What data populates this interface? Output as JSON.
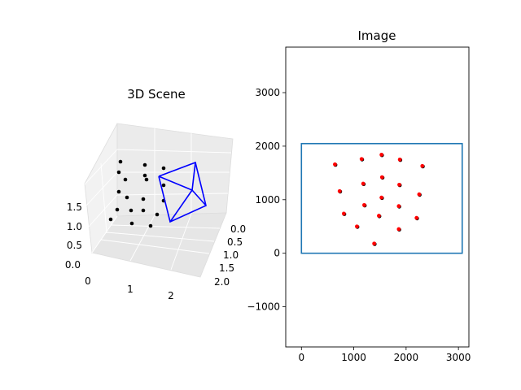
{
  "figure": {
    "background": "#ffffff"
  },
  "chart_data": [
    {
      "type": "scatter",
      "projection": "3d",
      "title": "3D Scene",
      "x_ticks": [
        "0",
        "1",
        "2"
      ],
      "y_ticks": [
        "0.0",
        "0.5",
        "1.0",
        "1.5",
        "2.0"
      ],
      "z_ticks": [
        "0.0",
        "0.5",
        "1.0",
        "1.5"
      ],
      "grid": true,
      "point_color": "#000000",
      "camera_color": "#0000ff",
      "points_note_units": "grid of world points on a plane, camera frustum drawn in blue"
    },
    {
      "type": "scatter",
      "title": "Image",
      "xlim": [
        -300,
        3200
      ],
      "ylim": [
        -1750,
        3850
      ],
      "x_ticks": [
        0,
        1000,
        2000,
        3000
      ],
      "y_ticks": [
        -1000,
        0,
        1000,
        2000,
        3000
      ],
      "x_tick_labels": [
        "0",
        "1000",
        "2000",
        "3000"
      ],
      "y_tick_labels": [
        "−1000",
        "0",
        "1000",
        "2000",
        "3000"
      ],
      "grid": false,
      "image_bounds": {
        "x": [
          0,
          3072
        ],
        "y": [
          0,
          2048
        ],
        "color": "#1f77b4"
      },
      "projected_color": "#000000",
      "detected_color": "#ff0000",
      "points": [
        [
          640,
          1660
        ],
        [
          1150,
          1760
        ],
        [
          1530,
          1840
        ],
        [
          1880,
          1750
        ],
        [
          2310,
          1630
        ],
        [
          1180,
          1300
        ],
        [
          1540,
          1420
        ],
        [
          1870,
          1280
        ],
        [
          730,
          1160
        ],
        [
          1530,
          1040
        ],
        [
          2250,
          1100
        ],
        [
          1200,
          900
        ],
        [
          1860,
          880
        ],
        [
          810,
          740
        ],
        [
          1480,
          700
        ],
        [
          2200,
          660
        ],
        [
          1060,
          500
        ],
        [
          1860,
          450
        ],
        [
          1390,
          180
        ]
      ]
    }
  ]
}
